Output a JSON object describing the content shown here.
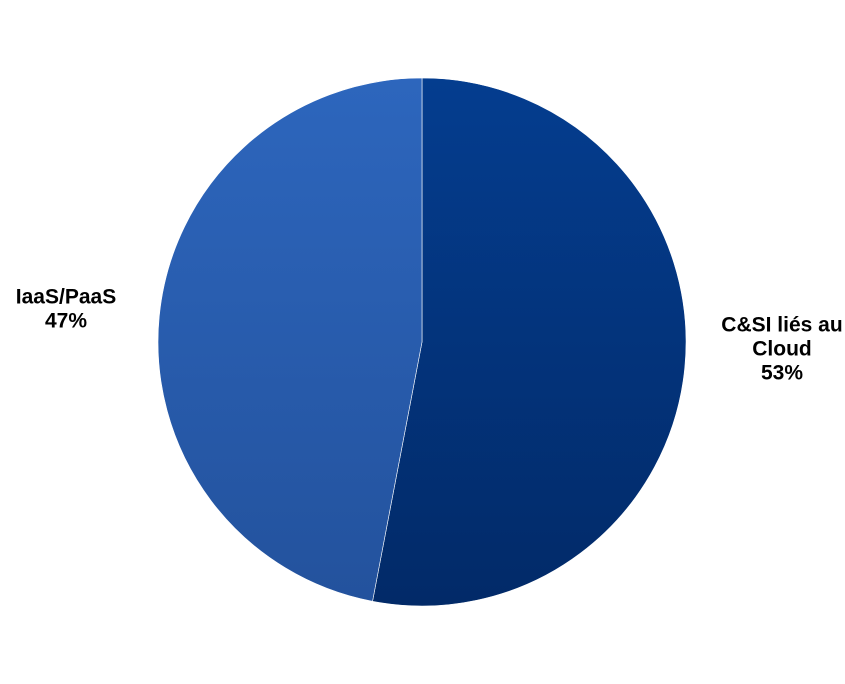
{
  "chart_data": {
    "type": "pie",
    "title": "",
    "slices": [
      {
        "label_lines": [
          "C&SI liés au",
          "Cloud"
        ],
        "value": 53,
        "value_label": "53%",
        "color": "#03357f"
      },
      {
        "label_lines": [
          "IaaS/PaaS"
        ],
        "value": 47,
        "value_label": "47%",
        "color": "#2a5eb1"
      }
    ],
    "start_angle": "12 o'clock",
    "direction": "clockwise",
    "legend": "none"
  }
}
